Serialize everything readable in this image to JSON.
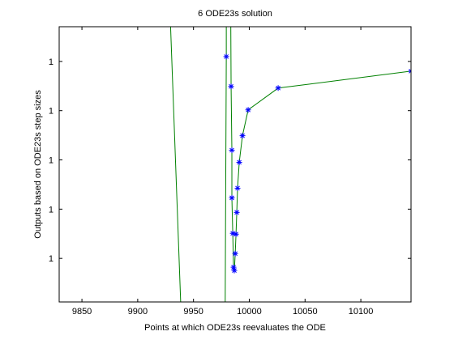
{
  "chart_data": {
    "type": "line",
    "title": "6 ODE23s solution",
    "x_label": "Points at which ODE23s reevaluates the ODE",
    "y_label": "Outputs based on ODE23s step sizes",
    "x": [
      9928.5,
      9939.5,
      9978.3,
      9979.4,
      9979.4,
      9983.3,
      9983.7,
      9984.4,
      9984.4,
      9985.2,
      9985.9,
      9986.6,
      9987.4,
      9988.1,
      9988.8,
      9989.5,
      9991.0,
      9993.9,
      9999.0,
      10025.9,
      10145.0
    ],
    "values": [
      1.53,
      0.85,
      0.85,
      1.4098,
      1.53,
      1.53,
      1.3492,
      1.2197,
      1.123,
      1.0508,
      0.982,
      0.9754,
      1.0098,
      1.0492,
      1.0934,
      1.1426,
      1.1951,
      1.2492,
      1.3016,
      1.3459,
      1.3803
    ],
    "color": "#008000",
    "marker_color": "#0000ff",
    "xlim": [
      9829.6,
      10145
    ],
    "ylim": [
      0.9115,
      1.4705
    ],
    "xticks": [
      9850,
      9900,
      9950,
      10000,
      10050,
      10100
    ],
    "yticks": [
      1,
      {
        "value": 1.1,
        "label": "1"
      },
      {
        "value": 1.2,
        "label": "1"
      },
      {
        "value": 1.3,
        "label": "1"
      },
      {
        "value": 1.4,
        "label": "1"
      }
    ],
    "grid": false
  }
}
